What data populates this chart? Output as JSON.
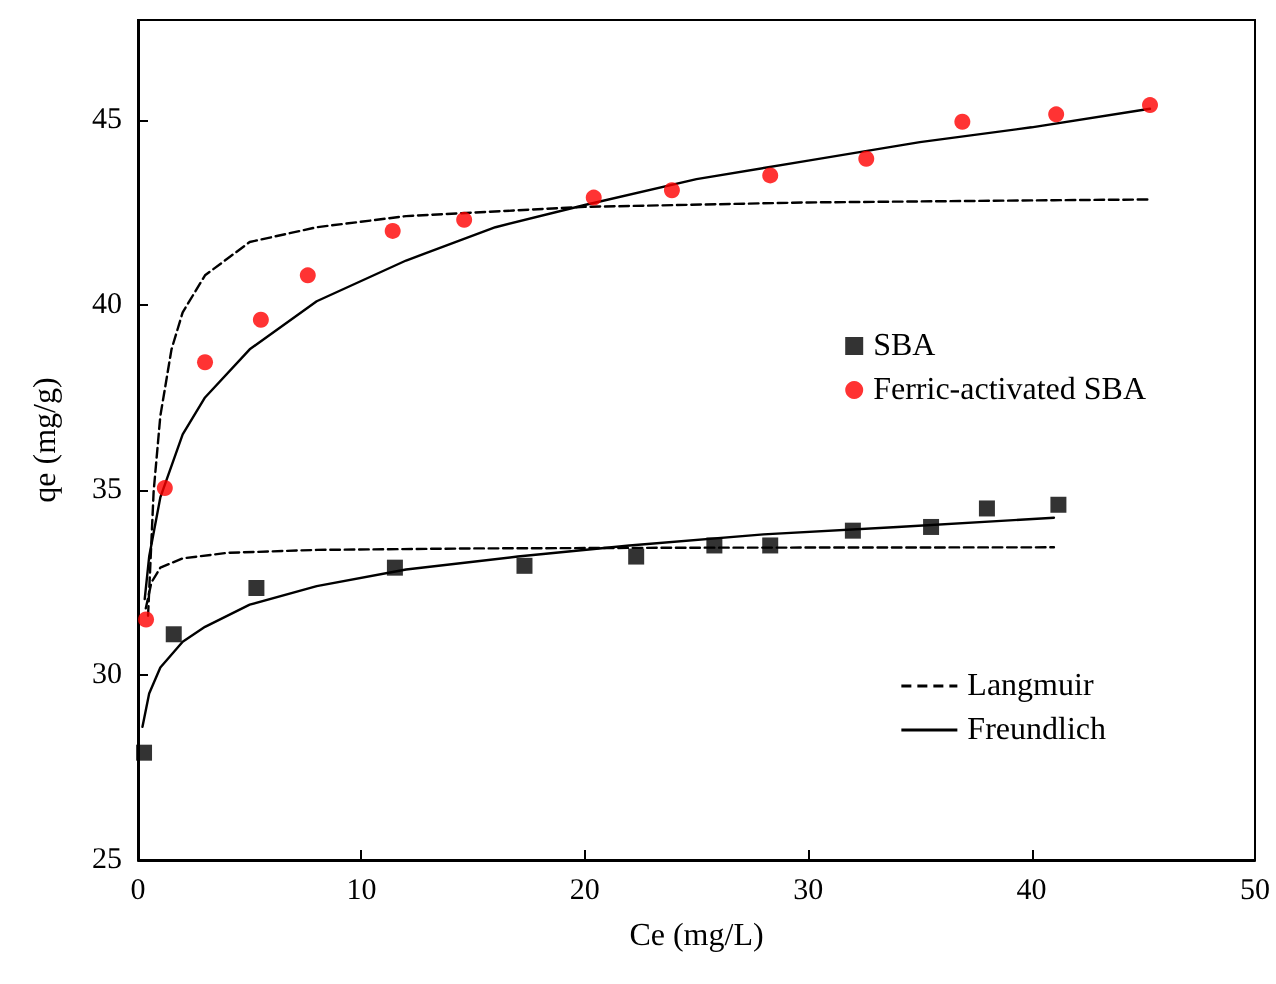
{
  "chart_data": {
    "type": "scatter",
    "xlabel": "Ce (mg/L)",
    "ylabel": "qe (mg/g)",
    "xlim": [
      0,
      50
    ],
    "ylim": [
      25,
      47.7
    ],
    "xticks": [
      0,
      10,
      20,
      30,
      40,
      50
    ],
    "yticks": [
      25,
      30,
      35,
      40,
      45
    ],
    "grid": false,
    "legend": "right",
    "series": [
      {
        "name": "SBA",
        "marker": "square",
        "color": "#000000",
        "x": [
          0.27,
          1.6,
          5.3,
          11.5,
          17.3,
          22.3,
          25.8,
          28.3,
          32,
          35.5,
          38,
          41.2
        ],
        "values": [
          27.9,
          31.1,
          32.35,
          32.9,
          32.95,
          33.2,
          33.5,
          33.5,
          33.9,
          34.0,
          34.5,
          34.6
        ]
      },
      {
        "name": "Ferric-activated SBA",
        "marker": "circle",
        "color": "#ff0000",
        "x": [
          0.36,
          1.2,
          3.0,
          5.5,
          7.6,
          11.4,
          14.6,
          20.4,
          23.9,
          28.3,
          32.6,
          36.9,
          41.1,
          45.3
        ],
        "values": [
          31.5,
          35.05,
          38.45,
          39.6,
          40.8,
          42.0,
          42.3,
          42.9,
          43.1,
          43.5,
          43.95,
          44.95,
          45.15,
          45.4
        ]
      },
      {
        "name": "Langmuir",
        "type": "line",
        "marker": "none",
        "line_style": "dashed",
        "color": "#000000",
        "x": [
          0.35,
          0.6,
          1,
          2,
          4,
          8,
          15,
          25,
          41
        ],
        "values": [
          31.8,
          32.5,
          32.9,
          33.15,
          33.3,
          33.38,
          33.42,
          33.44,
          33.45
        ]
      },
      {
        "name": "Freundlich",
        "type": "line",
        "marker": "none",
        "line_style": "solid",
        "color": "#000000",
        "x": [
          0.2,
          0.5,
          1,
          2,
          3,
          5,
          8,
          12,
          17,
          22,
          28,
          34,
          41
        ],
        "values": [
          28.6,
          29.5,
          30.2,
          30.9,
          31.3,
          31.9,
          32.4,
          32.85,
          33.2,
          33.5,
          33.8,
          34.0,
          34.25
        ]
      },
      {
        "type": "line",
        "marker": "none",
        "line_style": "dashed",
        "color": "#000000",
        "x": [
          0.45,
          0.7,
          1,
          1.5,
          2,
          3,
          5,
          8,
          12,
          20,
          30,
          41,
          45.3
        ],
        "values": [
          31.6,
          34.96,
          37.0,
          38.8,
          39.8,
          40.8,
          41.7,
          42.1,
          42.4,
          42.65,
          42.77,
          42.83,
          42.85
        ]
      },
      {
        "type": "line",
        "marker": "none",
        "line_style": "solid",
        "color": "#000000",
        "x": [
          0.3,
          0.5,
          1,
          2,
          3,
          5,
          8,
          12,
          16,
          20,
          25,
          30,
          35,
          40,
          45.3
        ],
        "values": [
          32.05,
          33.2,
          34.8,
          36.5,
          37.5,
          38.8,
          40.1,
          41.2,
          42.1,
          42.7,
          43.4,
          43.9,
          44.4,
          44.8,
          45.3
        ]
      }
    ]
  }
}
